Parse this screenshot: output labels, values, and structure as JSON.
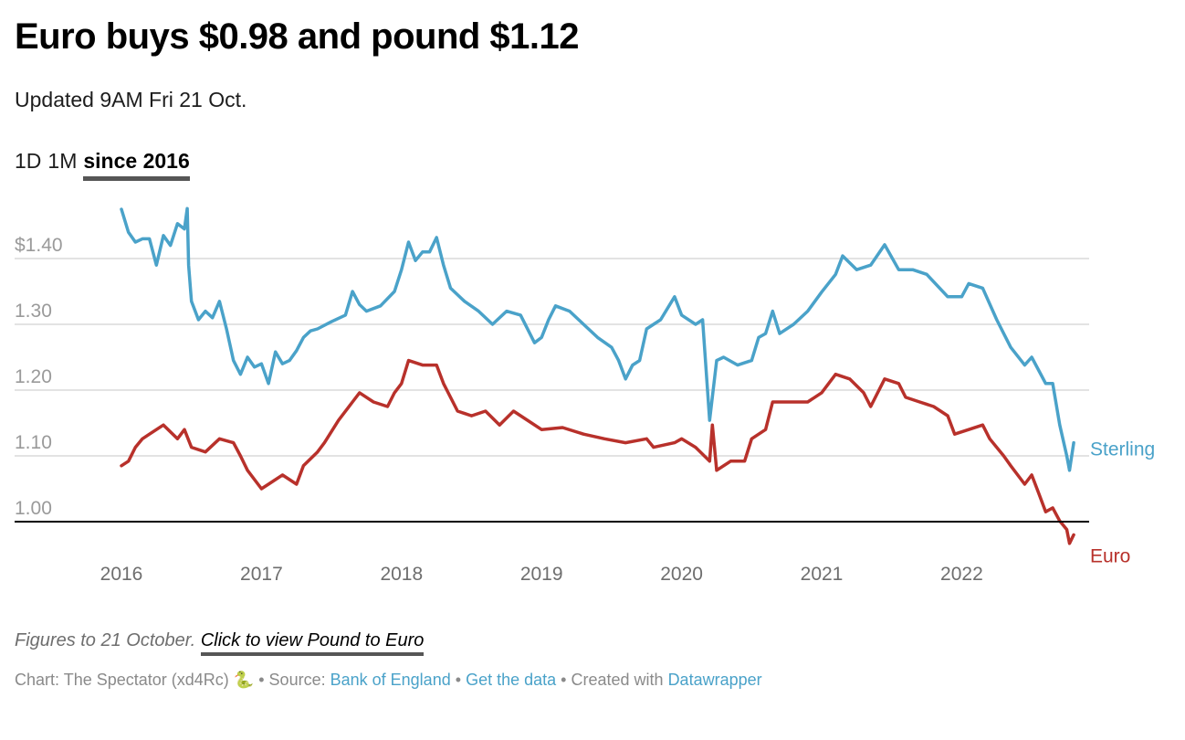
{
  "header": {
    "title": "Euro buys $0.98 and pound $1.12",
    "subtitle": "Updated 9AM Fri 21 Oct.",
    "tabs": [
      {
        "label": "1D",
        "active": false
      },
      {
        "label": "1M",
        "active": false
      },
      {
        "label": "since 2016",
        "active": true
      }
    ]
  },
  "notes": {
    "text": "Figures to 21 October.",
    "link": "Click to view Pound to Euro"
  },
  "footer": {
    "chart_prefix": "Chart: The Spectator (xd4Rc)",
    "snake_icon": "🐍",
    "sep": "•",
    "source_prefix": "Source:",
    "source_link": "Bank of England",
    "data_link": "Get the data",
    "created_prefix": "Created with",
    "created_link": "Datawrapper"
  },
  "chart_data": {
    "type": "line",
    "title": "Euro buys $0.98 and pound $1.12",
    "xlabel": "",
    "ylabel": "",
    "ylim": [
      0.95,
      1.48
    ],
    "xlim": [
      2016.0,
      2022.8
    ],
    "y_ticks": [
      {
        "value": 1.4,
        "label": "$1.40"
      },
      {
        "value": 1.3,
        "label": "1.30"
      },
      {
        "value": 1.2,
        "label": "1.20"
      },
      {
        "value": 1.1,
        "label": "1.10"
      },
      {
        "value": 1.0,
        "label": "1.00"
      }
    ],
    "x_ticks": [
      {
        "value": 2016,
        "label": "2016"
      },
      {
        "value": 2017,
        "label": "2017"
      },
      {
        "value": 2018,
        "label": "2018"
      },
      {
        "value": 2019,
        "label": "2019"
      },
      {
        "value": 2020,
        "label": "2020"
      },
      {
        "value": 2021,
        "label": "2021"
      },
      {
        "value": 2022,
        "label": "2022"
      }
    ],
    "grid": true,
    "legend": "direct labels at right end",
    "series": [
      {
        "name": "Sterling",
        "color": "#4aa2c9",
        "x": [
          2016.0,
          2016.05,
          2016.1,
          2016.15,
          2016.2,
          2016.25,
          2016.3,
          2016.35,
          2016.4,
          2016.45,
          2016.47,
          2016.48,
          2016.5,
          2016.55,
          2016.6,
          2016.65,
          2016.7,
          2016.75,
          2016.8,
          2016.85,
          2016.9,
          2016.95,
          2017.0,
          2017.05,
          2017.1,
          2017.15,
          2017.2,
          2017.25,
          2017.3,
          2017.35,
          2017.4,
          2017.5,
          2017.6,
          2017.65,
          2017.7,
          2017.75,
          2017.85,
          2017.95,
          2018.0,
          2018.05,
          2018.1,
          2018.15,
          2018.2,
          2018.25,
          2018.3,
          2018.35,
          2018.45,
          2018.55,
          2018.65,
          2018.75,
          2018.85,
          2018.95,
          2019.0,
          2019.05,
          2019.1,
          2019.2,
          2019.3,
          2019.4,
          2019.5,
          2019.55,
          2019.6,
          2019.65,
          2019.7,
          2019.75,
          2019.8,
          2019.85,
          2019.95,
          2020.0,
          2020.1,
          2020.15,
          2020.2,
          2020.25,
          2020.3,
          2020.4,
          2020.5,
          2020.55,
          2020.6,
          2020.65,
          2020.7,
          2020.8,
          2020.9,
          2021.0,
          2021.1,
          2021.15,
          2021.25,
          2021.35,
          2021.45,
          2021.55,
          2021.65,
          2021.75,
          2021.9,
          2022.0,
          2022.05,
          2022.15,
          2022.25,
          2022.35,
          2022.45,
          2022.5,
          2022.6,
          2022.65,
          2022.7,
          2022.75,
          2022.77,
          2022.8
        ],
        "values": [
          1.475,
          1.44,
          1.425,
          1.43,
          1.43,
          1.39,
          1.435,
          1.42,
          1.453,
          1.445,
          1.476,
          1.39,
          1.335,
          1.307,
          1.32,
          1.31,
          1.335,
          1.293,
          1.245,
          1.224,
          1.25,
          1.235,
          1.24,
          1.21,
          1.258,
          1.24,
          1.245,
          1.26,
          1.28,
          1.29,
          1.293,
          1.304,
          1.314,
          1.35,
          1.33,
          1.32,
          1.328,
          1.35,
          1.383,
          1.425,
          1.397,
          1.41,
          1.41,
          1.432,
          1.39,
          1.355,
          1.335,
          1.32,
          1.3,
          1.32,
          1.314,
          1.272,
          1.28,
          1.307,
          1.328,
          1.32,
          1.3,
          1.28,
          1.265,
          1.245,
          1.217,
          1.238,
          1.245,
          1.293,
          1.3,
          1.307,
          1.342,
          1.314,
          1.3,
          1.307,
          1.154,
          1.245,
          1.25,
          1.238,
          1.245,
          1.28,
          1.286,
          1.32,
          1.286,
          1.3,
          1.32,
          1.349,
          1.376,
          1.404,
          1.383,
          1.39,
          1.421,
          1.383,
          1.383,
          1.376,
          1.342,
          1.342,
          1.362,
          1.355,
          1.307,
          1.265,
          1.238,
          1.25,
          1.21,
          1.21,
          1.147,
          1.1,
          1.078,
          1.12
        ]
      },
      {
        "name": "Euro",
        "color": "#b8312b",
        "x": [
          2016.0,
          2016.05,
          2016.1,
          2016.15,
          2016.2,
          2016.3,
          2016.4,
          2016.45,
          2016.5,
          2016.6,
          2016.7,
          2016.8,
          2016.85,
          2016.9,
          2017.0,
          2017.05,
          2017.15,
          2017.25,
          2017.3,
          2017.4,
          2017.45,
          2017.55,
          2017.65,
          2017.7,
          2017.8,
          2017.9,
          2017.95,
          2018.0,
          2018.05,
          2018.15,
          2018.25,
          2018.3,
          2018.4,
          2018.5,
          2018.6,
          2018.7,
          2018.8,
          2018.9,
          2019.0,
          2019.15,
          2019.3,
          2019.45,
          2019.6,
          2019.75,
          2019.8,
          2019.95,
          2020.0,
          2020.1,
          2020.2,
          2020.22,
          2020.25,
          2020.35,
          2020.45,
          2020.5,
          2020.6,
          2020.65,
          2020.75,
          2020.9,
          2021.0,
          2021.1,
          2021.2,
          2021.3,
          2021.35,
          2021.45,
          2021.55,
          2021.6,
          2021.7,
          2021.8,
          2021.9,
          2021.95,
          2022.05,
          2022.15,
          2022.2,
          2022.3,
          2022.35,
          2022.45,
          2022.5,
          2022.55,
          2022.6,
          2022.65,
          2022.7,
          2022.75,
          2022.77,
          2022.8
        ],
        "values": [
          1.085,
          1.092,
          1.113,
          1.126,
          1.133,
          1.147,
          1.126,
          1.14,
          1.113,
          1.106,
          1.126,
          1.12,
          1.1,
          1.078,
          1.05,
          1.057,
          1.071,
          1.057,
          1.085,
          1.106,
          1.12,
          1.154,
          1.182,
          1.196,
          1.182,
          1.175,
          1.196,
          1.21,
          1.245,
          1.238,
          1.238,
          1.21,
          1.168,
          1.161,
          1.168,
          1.147,
          1.168,
          1.154,
          1.14,
          1.143,
          1.133,
          1.126,
          1.12,
          1.126,
          1.113,
          1.12,
          1.126,
          1.113,
          1.092,
          1.147,
          1.078,
          1.092,
          1.092,
          1.126,
          1.14,
          1.182,
          1.182,
          1.182,
          1.196,
          1.224,
          1.217,
          1.196,
          1.175,
          1.217,
          1.21,
          1.189,
          1.182,
          1.175,
          1.161,
          1.133,
          1.14,
          1.147,
          1.126,
          1.1,
          1.085,
          1.057,
          1.071,
          1.043,
          1.015,
          1.021,
          1.001,
          0.988,
          0.967,
          0.98
        ]
      }
    ]
  }
}
